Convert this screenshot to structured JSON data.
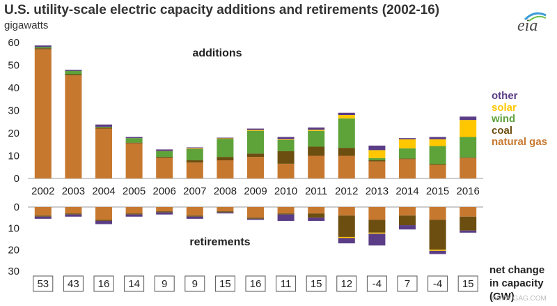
{
  "header": {
    "title": "U.S. utility-scale electric capacity additions and retirements (2002-16)",
    "subtitle": "gigawatts",
    "logo": "eia"
  },
  "colors": {
    "natural gas": "#c7782f",
    "coal": "#6b4e10",
    "wind": "#5ea23a",
    "solar": "#ffc700",
    "other": "#5a3d86"
  },
  "legend": [
    {
      "name": "other",
      "color": "#5a3d86"
    },
    {
      "name": "solar",
      "color": "#ffc700"
    },
    {
      "name": "wind",
      "color": "#5ea23a"
    },
    {
      "name": "coal",
      "color": "#6b4e10"
    },
    {
      "name": "natural gas",
      "color": "#c7782f"
    }
  ],
  "net_label": [
    "net change",
    "in capacity",
    "(GW)"
  ],
  "watermark": "WWW.GAG.COM",
  "chart_data": [
    {
      "type": "bar",
      "stacked": true,
      "label": "additions",
      "categories": [
        "2002",
        "2003",
        "2004",
        "2005",
        "2006",
        "2007",
        "2008",
        "2009",
        "2010",
        "2011",
        "2012",
        "2013",
        "2014",
        "2015",
        "2016"
      ],
      "series": [
        {
          "name": "natural gas",
          "values": [
            57,
            45.5,
            22,
            15.5,
            9,
            7,
            8,
            9.5,
            6.5,
            10,
            10,
            7.5,
            8.5,
            6,
            9
          ]
        },
        {
          "name": "coal",
          "values": [
            0.5,
            0.5,
            0.5,
            0.3,
            0.5,
            1,
            1.5,
            1.5,
            5.5,
            4,
            3.5,
            0.5,
            0.3,
            0.3,
            0.3
          ]
        },
        {
          "name": "wind",
          "values": [
            0.5,
            1.5,
            0.3,
            2,
            2.5,
            5,
            8,
            10,
            5,
            7,
            13,
            1,
            4.5,
            8,
            9
          ]
        },
        {
          "name": "solar",
          "values": [
            0,
            0,
            0,
            0,
            0.1,
            0.3,
            0.2,
            0.4,
            0.3,
            0.5,
            1.5,
            3.5,
            4,
            3,
            7.5
          ]
        },
        {
          "name": "other",
          "values": [
            0.7,
            0.5,
            1,
            0.5,
            0.7,
            0.4,
            0.3,
            0.6,
            1,
            1,
            1,
            2,
            0.5,
            1,
            1.5
          ]
        }
      ],
      "ylim": [
        0,
        60
      ],
      "yticks": [
        0,
        10,
        20,
        30,
        40,
        50,
        60
      ]
    },
    {
      "type": "bar",
      "stacked": true,
      "label": "retirements",
      "categories": [
        "2002",
        "2003",
        "2004",
        "2005",
        "2006",
        "2007",
        "2008",
        "2009",
        "2010",
        "2011",
        "2012",
        "2013",
        "2014",
        "2015",
        "2016"
      ],
      "series": [
        {
          "name": "natural gas",
          "values": [
            4,
            3,
            6,
            3,
            2,
            4,
            2,
            5,
            3,
            3,
            4,
            6,
            4,
            6,
            4.5
          ]
        },
        {
          "name": "coal",
          "values": [
            0.5,
            0.5,
            0.5,
            0.5,
            0.5,
            0.5,
            0.5,
            0.5,
            0.5,
            2,
            10,
            6,
            4.5,
            14,
            6.5
          ]
        },
        {
          "name": "solar",
          "values": [
            0,
            0,
            0,
            0,
            0,
            0,
            0,
            0,
            0,
            0,
            0.5,
            0.5,
            0,
            0.5,
            0
          ]
        },
        {
          "name": "other",
          "values": [
            1,
            1,
            1.5,
            1,
            1,
            1,
            0.5,
            0.5,
            3,
            1.5,
            2.5,
            5.5,
            2,
            1.5,
            1
          ]
        }
      ],
      "ylim": [
        0,
        30
      ],
      "yticks": [
        0,
        10,
        20,
        30
      ],
      "inverted": true
    }
  ],
  "net_change": [
    "53",
    "43",
    "16",
    "14",
    "9",
    "9",
    "15",
    "16",
    "11",
    "15",
    "12",
    "-4",
    "7",
    "-4",
    "15"
  ]
}
